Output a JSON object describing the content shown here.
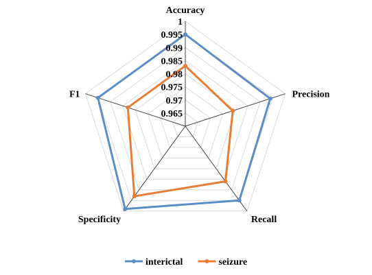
{
  "chart_data": {
    "type": "radar",
    "axes": [
      "Accuracy",
      "Precision",
      "Recall",
      "Specificity",
      "F1"
    ],
    "rlim": [
      0.96,
      1.0
    ],
    "ticks": [
      "0.965",
      "0.97",
      "0.975",
      "0.98",
      "0.985",
      "0.99",
      "0.995",
      "1"
    ],
    "tick_values": [
      0.965,
      0.97,
      0.975,
      0.98,
      0.985,
      0.99,
      0.995,
      1.0
    ],
    "grid": true,
    "legend_position": "bottom",
    "series": [
      {
        "name": "interictal",
        "color": "#5b8ec5",
        "values": [
          0.995,
          0.994,
          0.995,
          0.999,
          0.995
        ]
      },
      {
        "name": "seizure",
        "color": "#e87d36",
        "values": [
          0.983,
          0.979,
          0.986,
          0.993,
          0.983
        ]
      }
    ]
  }
}
